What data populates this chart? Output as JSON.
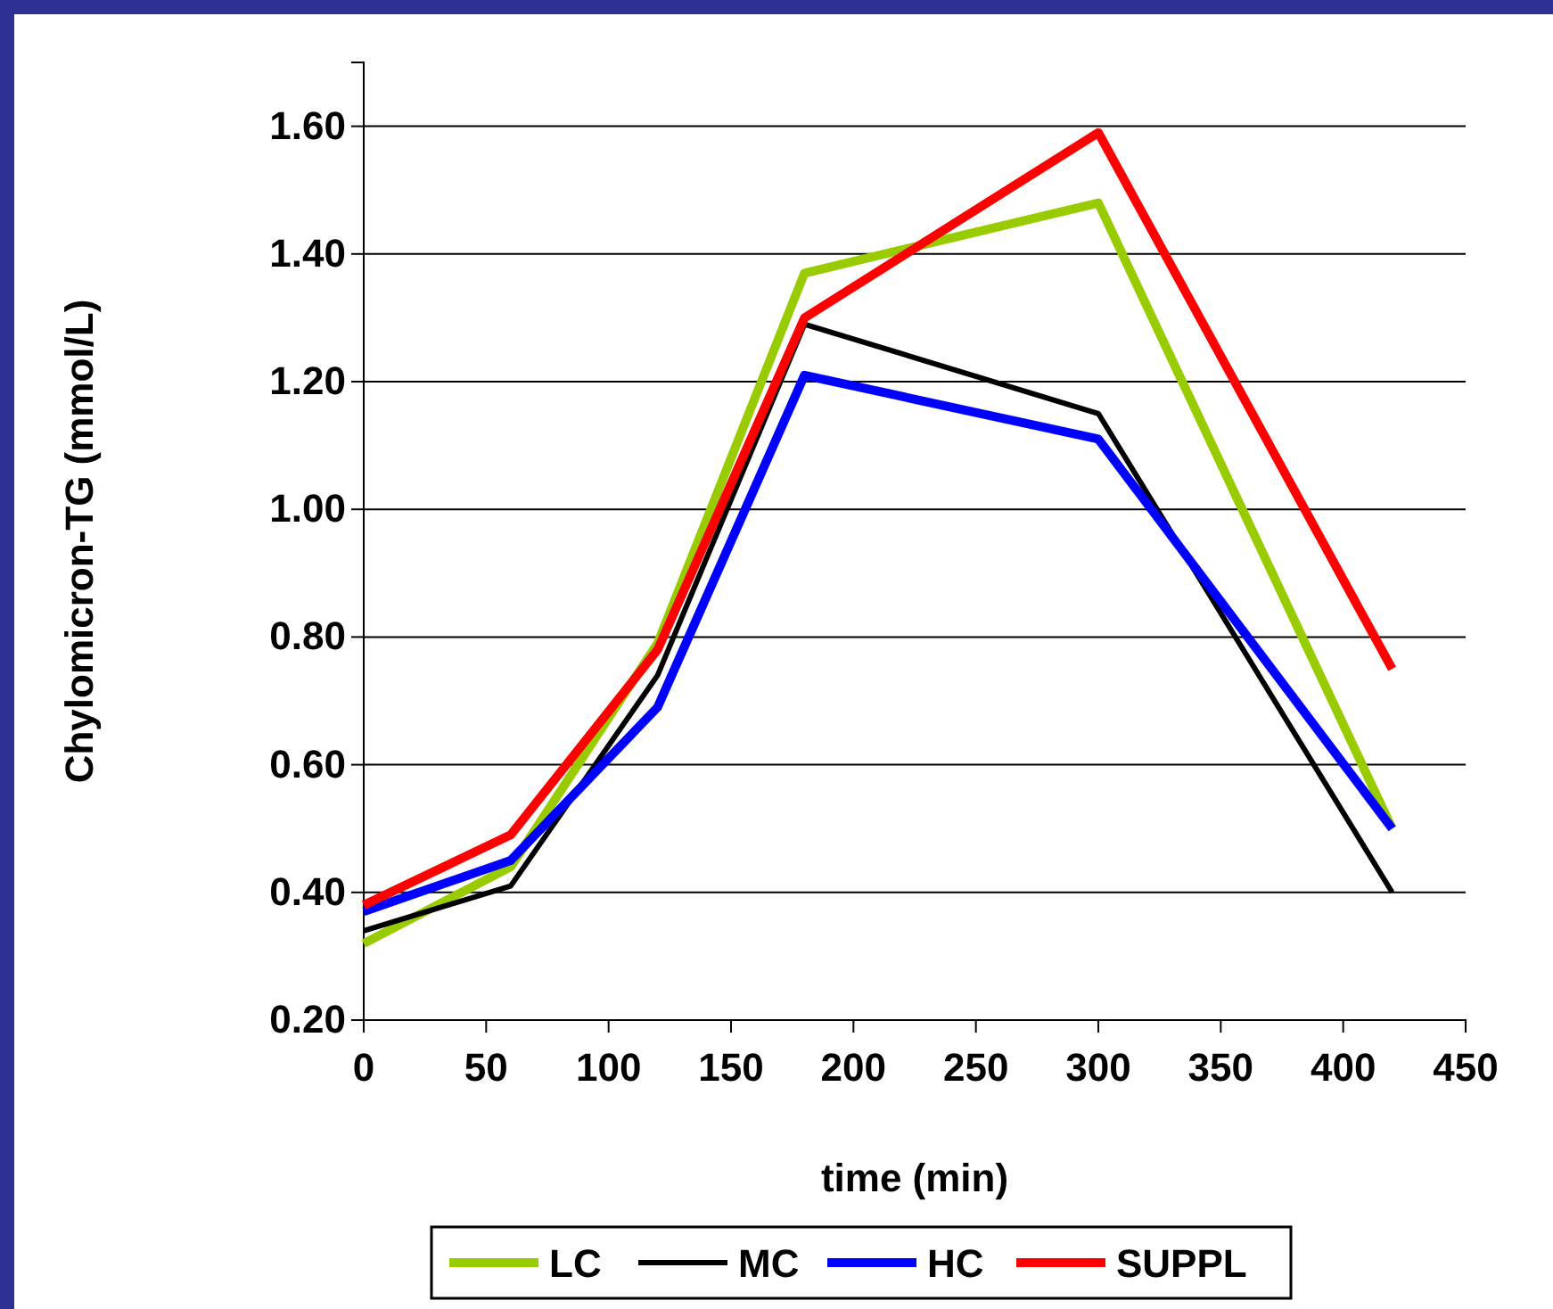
{
  "chart_data": {
    "type": "line",
    "xlabel": "time (min)",
    "ylabel": "Chylomicron-TG (mmol/L)",
    "x": [
      0,
      60,
      120,
      180,
      300,
      420
    ],
    "series": [
      {
        "name": "LC",
        "color": "#99cc00",
        "values": [
          0.32,
          0.44,
          0.79,
          1.37,
          1.48,
          0.5
        ]
      },
      {
        "name": "MC",
        "color": "#000000",
        "values": [
          0.34,
          0.41,
          0.74,
          1.29,
          1.15,
          0.4
        ]
      },
      {
        "name": "HC",
        "color": "#0000ff",
        "values": [
          0.37,
          0.45,
          0.69,
          1.21,
          1.11,
          0.5
        ]
      },
      {
        "name": "SUPPL",
        "color": "#ff0000",
        "values": [
          0.38,
          0.49,
          0.78,
          1.3,
          1.59,
          0.75
        ]
      }
    ],
    "xlim": [
      0,
      450
    ],
    "xticks": [
      0,
      50,
      100,
      150,
      200,
      250,
      300,
      350,
      400,
      450
    ],
    "ylim": [
      0.2,
      1.7
    ],
    "yticks": [
      {
        "value": 0.2,
        "label": "0.20"
      },
      {
        "value": 0.4,
        "label": "0.40"
      },
      {
        "value": 0.6,
        "label": "0.60"
      },
      {
        "value": 0.8,
        "label": "0.80"
      },
      {
        "value": 1.0,
        "label": "1.00"
      },
      {
        "value": 1.2,
        "label": "1.20"
      },
      {
        "value": 1.4,
        "label": "1.40"
      },
      {
        "value": 1.6,
        "label": "1.60"
      }
    ],
    "grid": "y",
    "legend": "bottom",
    "marker": "none",
    "line_style": "solid"
  }
}
